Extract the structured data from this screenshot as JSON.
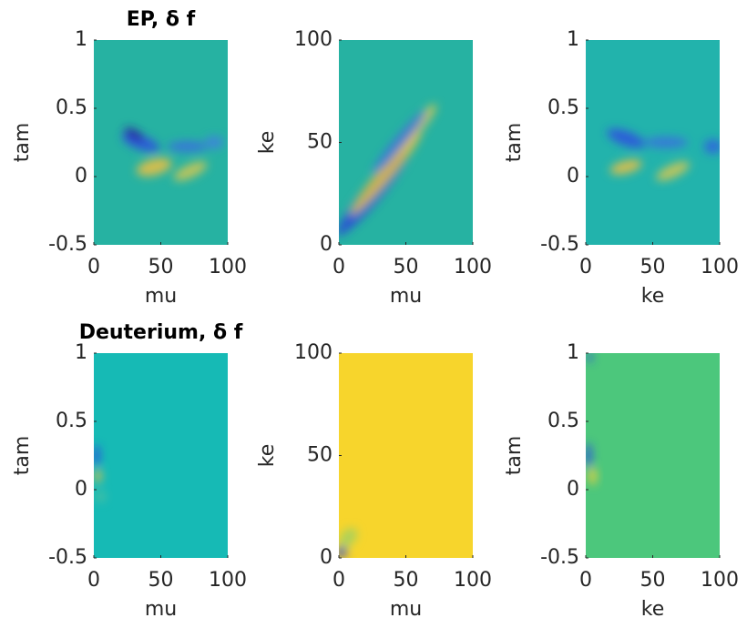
{
  "chart_data": [
    {
      "type": "heatmap",
      "title": "EP, δ f",
      "xlabel": "mu",
      "ylabel": "tam",
      "xlim": [
        0,
        100
      ],
      "xticks": [
        0,
        50,
        100
      ],
      "ylim": [
        -0.5,
        1
      ],
      "yticks": [
        -0.5,
        0,
        0.5,
        1
      ],
      "color": "#26b2a2"
    },
    {
      "type": "heatmap",
      "xlabel": "mu",
      "ylabel": "ke",
      "xlim": [
        0,
        100
      ],
      "xticks": [
        0,
        50,
        100
      ],
      "ylim": [
        0,
        100
      ],
      "yticks": [
        0,
        50,
        100
      ],
      "color": "#26b2a2"
    },
    {
      "type": "heatmap",
      "xlabel": "ke",
      "ylabel": "tam",
      "xlim": [
        0,
        100
      ],
      "xticks": [
        0,
        50,
        100
      ],
      "ylim": [
        -0.5,
        1
      ],
      "yticks": [
        -0.5,
        0,
        0.5,
        1
      ],
      "color": "#22b3ac"
    },
    {
      "type": "heatmap",
      "title": "Deuterium, δ f",
      "xlabel": "mu",
      "ylabel": "tam",
      "xlim": [
        0,
        100
      ],
      "xticks": [
        0,
        50,
        100
      ],
      "ylim": [
        -0.5,
        1
      ],
      "yticks": [
        -0.5,
        0,
        0.5,
        1
      ],
      "color": "#16bab5"
    },
    {
      "type": "heatmap",
      "xlabel": "mu",
      "ylabel": "ke",
      "xlim": [
        0,
        100
      ],
      "xticks": [
        0,
        50,
        100
      ],
      "ylim": [
        0,
        100
      ],
      "yticks": [
        0,
        50,
        100
      ],
      "color": "#f7d52c"
    },
    {
      "type": "heatmap",
      "xlabel": "ke",
      "ylabel": "tam",
      "xlim": [
        0,
        100
      ],
      "xticks": [
        0,
        50,
        100
      ],
      "ylim": [
        -0.5,
        1
      ],
      "yticks": [
        -0.5,
        0,
        0.5,
        1
      ],
      "color": "#4cc77c"
    }
  ]
}
